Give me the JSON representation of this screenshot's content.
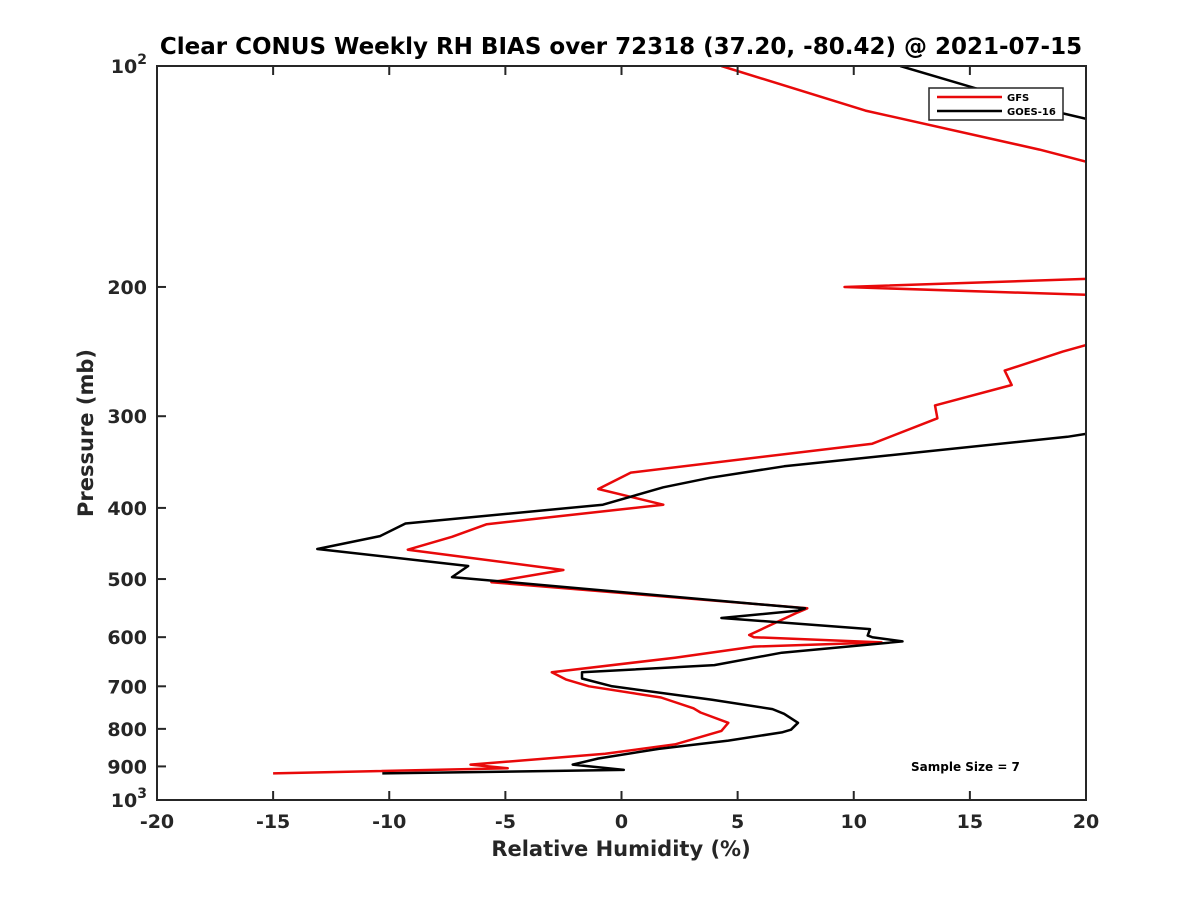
{
  "chart_data": {
    "type": "line",
    "title": "Clear CONUS Weekly RH BIAS over 72318 (37.20, -80.42) @ 2021-07-15",
    "xlabel": "Relative Humidity (%)",
    "ylabel": "Pressure (mb)",
    "xlim": [
      -20,
      20
    ],
    "ylim": [
      100,
      1000
    ],
    "y_scale": "log",
    "y_reversed": true,
    "grid": false,
    "legend_position": "top-right",
    "x_ticks": [
      "-20",
      "-15",
      "-10",
      "-5",
      "0",
      "5",
      "10",
      "15",
      "20"
    ],
    "y_ticks": [
      {
        "value": 100,
        "base": "10",
        "exp": "2"
      },
      {
        "value": 200,
        "label": "200"
      },
      {
        "value": 300,
        "label": "300"
      },
      {
        "value": 400,
        "label": "400"
      },
      {
        "value": 500,
        "label": "500"
      },
      {
        "value": 600,
        "label": "600"
      },
      {
        "value": 700,
        "label": "700"
      },
      {
        "value": 800,
        "label": "800"
      },
      {
        "value": 900,
        "label": "900"
      },
      {
        "value": 1000,
        "base": "10",
        "exp": "3"
      }
    ],
    "annotation": "Sample Size = 7",
    "series": [
      {
        "name": "GFS",
        "color": "#e8090a",
        "points": [
          [
            4.3,
            100
          ],
          [
            10.5,
            115
          ],
          [
            18,
            130
          ],
          [
            20,
            135
          ],
          [
            null,
            null
          ],
          [
            20,
            195
          ],
          [
            9.6,
            200
          ],
          [
            20,
            205
          ],
          [
            null,
            null
          ],
          [
            20,
            240
          ],
          [
            19,
            245
          ],
          [
            16.5,
            260
          ],
          [
            16.8,
            272
          ],
          [
            13.5,
            290
          ],
          [
            13.6,
            302
          ],
          [
            10.8,
            327
          ],
          [
            0.4,
            358
          ],
          [
            -1,
            377
          ],
          [
            1.8,
            396
          ],
          [
            -5.8,
            421
          ],
          [
            -7.3,
            438
          ],
          [
            -9.2,
            456
          ],
          [
            -2.5,
            486
          ],
          [
            -5.6,
            505
          ],
          [
            8,
            548
          ],
          [
            7.6,
            555
          ],
          [
            5.5,
            596
          ],
          [
            5.7,
            600
          ],
          [
            11.2,
            610
          ],
          [
            5.7,
            618
          ],
          [
            2.3,
            640
          ],
          [
            -3,
            670
          ],
          [
            -2.4,
            685
          ],
          [
            -1.4,
            700
          ],
          [
            1.7,
            725
          ],
          [
            3.1,
            750
          ],
          [
            3.4,
            760
          ],
          [
            4.6,
            785
          ],
          [
            4.3,
            805
          ],
          [
            2.3,
            840
          ],
          [
            -0.7,
            865
          ],
          [
            -6.5,
            895
          ],
          [
            -4.9,
            905
          ],
          [
            -15,
            920
          ]
        ]
      },
      {
        "name": "GOES-16",
        "color": "#000000",
        "points": [
          [
            12,
            100
          ],
          [
            18.5,
            115
          ],
          [
            20,
            118
          ],
          [
            null,
            null
          ],
          [
            20,
            317
          ],
          [
            19.2,
            320
          ],
          [
            7,
            351
          ],
          [
            3.8,
            364
          ],
          [
            1.8,
            375
          ],
          [
            -0.8,
            396
          ],
          [
            -9.3,
            420
          ],
          [
            -10.4,
            437
          ],
          [
            -13.1,
            455
          ],
          [
            -6.6,
            480
          ],
          [
            -7.3,
            497
          ],
          [
            7.9,
            548
          ],
          [
            7.6,
            552
          ],
          [
            4.3,
            565
          ],
          [
            10.7,
            585
          ],
          [
            10.6,
            597
          ],
          [
            10.8,
            600
          ],
          [
            12.1,
            608
          ],
          [
            6.9,
            630
          ],
          [
            4,
            655
          ],
          [
            -1.7,
            670
          ],
          [
            -1.7,
            683
          ],
          [
            -0.4,
            700
          ],
          [
            3.9,
            730
          ],
          [
            6.5,
            752
          ],
          [
            7,
            763
          ],
          [
            7.6,
            785
          ],
          [
            7.3,
            802
          ],
          [
            6.9,
            809
          ],
          [
            4.6,
            830
          ],
          [
            1.6,
            852
          ],
          [
            -1,
            878
          ],
          [
            -2.1,
            895
          ],
          [
            0.1,
            910
          ],
          [
            -10.3,
            920
          ]
        ]
      }
    ]
  }
}
